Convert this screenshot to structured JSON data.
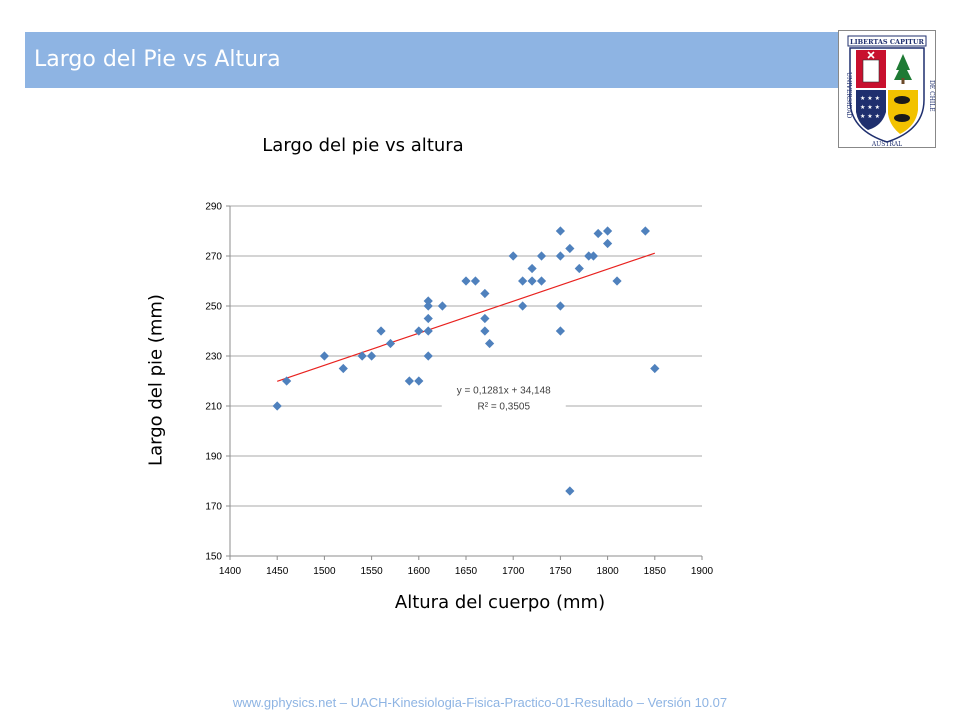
{
  "slide": {
    "title": "Largo del Pie vs Altura",
    "footer": "www.gphysics.net – UACH-Kinesiologia-Fisica-Practico-01-Resultado – Versión 10.07",
    "banner_color": "#8eb4e3"
  },
  "logo": {
    "motto": "LIBERTAS CAPITUR",
    "text_left": "UNIVERSIDAD",
    "text_bottom": "AUSTRAL",
    "text_right": "DE CHILE",
    "colors": {
      "red": "#c8102e",
      "navy": "#1f2f6e",
      "gold": "#f2c200",
      "green": "#1e7a34"
    }
  },
  "chart_data": {
    "type": "scatter",
    "title": "Largo del pie vs altura",
    "xlabel": "Altura del cuerpo (mm)",
    "ylabel": "Largo del pie (mm)",
    "xlim": [
      1400,
      1900
    ],
    "ylim": [
      150,
      290
    ],
    "xticks": [
      1400,
      1450,
      1500,
      1550,
      1600,
      1650,
      1700,
      1750,
      1800,
      1850,
      1900
    ],
    "yticks": [
      150,
      170,
      190,
      210,
      230,
      250,
      270,
      290
    ],
    "grid": true,
    "marker_color": "#4f81bd",
    "trendline_color": "#e8221f",
    "points": [
      [
        1450,
        210
      ],
      [
        1460,
        220
      ],
      [
        1500,
        230
      ],
      [
        1520,
        225
      ],
      [
        1540,
        230
      ],
      [
        1550,
        230
      ],
      [
        1560,
        240
      ],
      [
        1570,
        235
      ],
      [
        1590,
        220
      ],
      [
        1600,
        220
      ],
      [
        1600,
        240
      ],
      [
        1610,
        230
      ],
      [
        1610,
        240
      ],
      [
        1610,
        245
      ],
      [
        1610,
        250
      ],
      [
        1610,
        252
      ],
      [
        1625,
        250
      ],
      [
        1650,
        260
      ],
      [
        1660,
        260
      ],
      [
        1670,
        255
      ],
      [
        1670,
        245
      ],
      [
        1670,
        240
      ],
      [
        1675,
        235
      ],
      [
        1700,
        270
      ],
      [
        1710,
        260
      ],
      [
        1710,
        250
      ],
      [
        1720,
        265
      ],
      [
        1720,
        260
      ],
      [
        1730,
        270
      ],
      [
        1730,
        260
      ],
      [
        1750,
        280
      ],
      [
        1750,
        270
      ],
      [
        1750,
        250
      ],
      [
        1750,
        240
      ],
      [
        1760,
        273
      ],
      [
        1760,
        176
      ],
      [
        1770,
        265
      ],
      [
        1780,
        270
      ],
      [
        1785,
        270
      ],
      [
        1790,
        279
      ],
      [
        1800,
        280
      ],
      [
        1800,
        275
      ],
      [
        1810,
        260
      ],
      [
        1840,
        280
      ],
      [
        1850,
        225
      ]
    ],
    "trendline": {
      "slope": 0.1281,
      "intercept": 34.148,
      "x_range": [
        1450,
        1850
      ],
      "equation": "y = 0,1281x + 34,148",
      "r_squared": "R² = 0,3505"
    }
  }
}
